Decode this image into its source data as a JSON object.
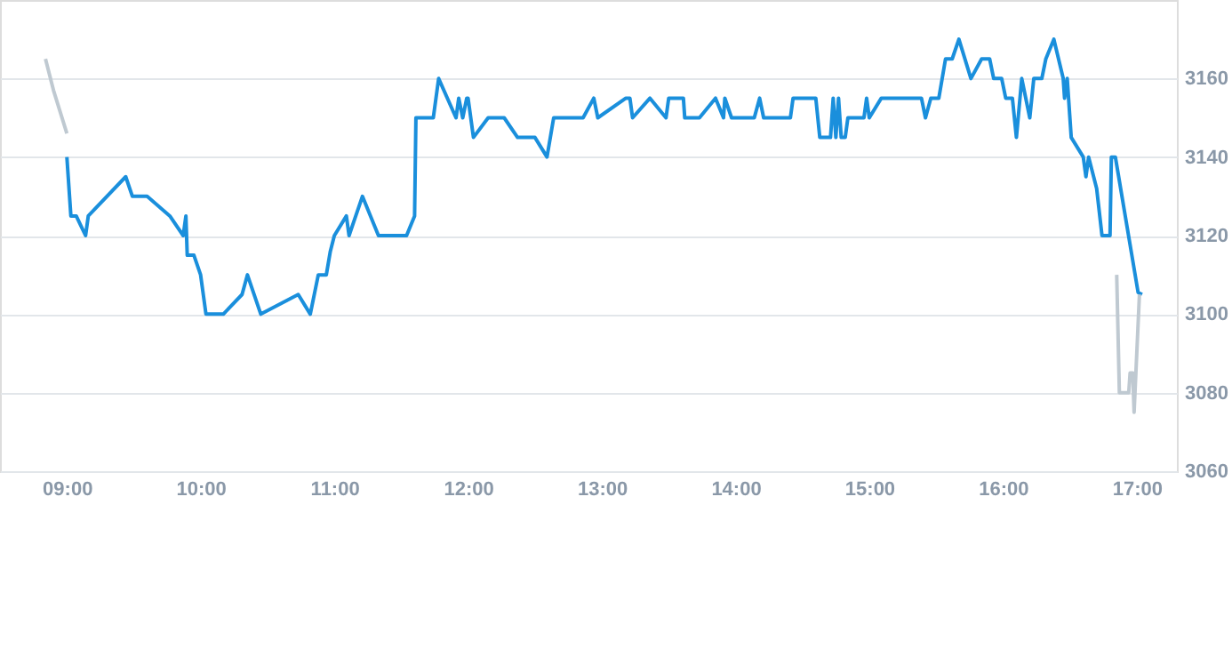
{
  "chart_data": {
    "type": "line",
    "xlim": [
      8.5,
      17.3
    ],
    "ylim": [
      3060,
      3180
    ],
    "xticks": [
      {
        "value": 9,
        "label": "09:00"
      },
      {
        "value": 10,
        "label": "10:00"
      },
      {
        "value": 11,
        "label": "11:00"
      },
      {
        "value": 12,
        "label": "12:00"
      },
      {
        "value": 13,
        "label": "13:00"
      },
      {
        "value": 14,
        "label": "14:00"
      },
      {
        "value": 15,
        "label": "15:00"
      },
      {
        "value": 16,
        "label": "16:00"
      },
      {
        "value": 17,
        "label": "17:00"
      }
    ],
    "yticks": [
      3060,
      3080,
      3100,
      3120,
      3140,
      3160
    ],
    "grid": "y",
    "marker": "none",
    "line_style": "solid",
    "series": [
      {
        "color": "#bfc9d1",
        "x": [
          8.84,
          8.9,
          9.0
        ],
        "values": [
          3165,
          3157,
          3146
        ]
      },
      {
        "color": "#1a8fdc",
        "x": [
          9.0,
          9.03,
          9.07,
          9.14,
          9.16,
          9.44,
          9.49,
          9.6,
          9.77,
          9.87,
          9.89,
          9.9,
          9.95,
          10.0,
          10.04,
          10.17,
          10.31,
          10.35,
          10.45,
          10.73,
          10.82,
          10.88,
          10.94,
          10.97,
          11.0,
          11.09,
          11.11,
          11.21,
          11.33,
          11.54,
          11.6,
          11.61,
          11.74,
          11.78,
          11.91,
          11.93,
          11.96,
          11.99,
          12.0,
          12.04,
          12.15,
          12.27,
          12.37,
          12.5,
          12.59,
          12.64,
          12.86,
          12.94,
          12.97,
          13.18,
          13.21,
          13.23,
          13.36,
          13.48,
          13.5,
          13.61,
          13.62,
          13.73,
          13.85,
          13.91,
          13.92,
          13.97,
          14.14,
          14.18,
          14.21,
          14.41,
          14.43,
          14.6,
          14.63,
          14.71,
          14.73,
          14.75,
          14.77,
          14.79,
          14.82,
          14.84,
          14.96,
          14.98,
          15.0,
          15.09,
          15.39,
          15.42,
          15.46,
          15.52,
          15.57,
          15.62,
          15.67,
          15.76,
          15.84,
          15.9,
          15.93,
          15.99,
          16.02,
          16.07,
          16.1,
          16.14,
          16.2,
          16.23,
          16.29,
          16.32,
          16.38,
          16.45,
          16.46,
          16.48,
          16.51,
          16.6,
          16.62,
          16.64,
          16.7,
          16.74,
          16.8,
          16.81,
          16.84,
          17.01,
          17.04
        ],
        "values": [
          3140,
          3125,
          3125,
          3120,
          3125,
          3135,
          3130,
          3130,
          3125,
          3120,
          3125,
          3115,
          3115,
          3110,
          3100,
          3100,
          3105,
          3110,
          3100,
          3105,
          3100,
          3110,
          3110,
          3116,
          3120,
          3125,
          3120,
          3130,
          3120,
          3120,
          3125,
          3150,
          3150,
          3160,
          3150,
          3155,
          3150,
          3155,
          3155,
          3145,
          3150,
          3150,
          3145,
          3145,
          3140,
          3150,
          3150,
          3155,
          3150,
          3155,
          3155,
          3150,
          3155,
          3150,
          3155,
          3155,
          3150,
          3150,
          3155,
          3150,
          3155,
          3150,
          3150,
          3155,
          3150,
          3150,
          3155,
          3155,
          3145,
          3145,
          3155,
          3145,
          3155,
          3145,
          3145,
          3150,
          3150,
          3155,
          3150,
          3155,
          3155,
          3150,
          3155,
          3155,
          3165,
          3165,
          3170,
          3160,
          3165,
          3165,
          3160,
          3160,
          3155,
          3155,
          3145,
          3160,
          3150,
          3160,
          3160,
          3165,
          3170,
          3160,
          3155,
          3160,
          3145,
          3140,
          3135,
          3140,
          3132,
          3120,
          3120,
          3140,
          3140,
          3105.5,
          3105
        ]
      },
      {
        "color": "#bfc9d1",
        "x": [
          16.85,
          16.87,
          16.94,
          16.95,
          16.97,
          16.98,
          17.02
        ],
        "values": [
          3110,
          3080,
          3080,
          3085,
          3085,
          3075,
          3105
        ]
      }
    ]
  }
}
